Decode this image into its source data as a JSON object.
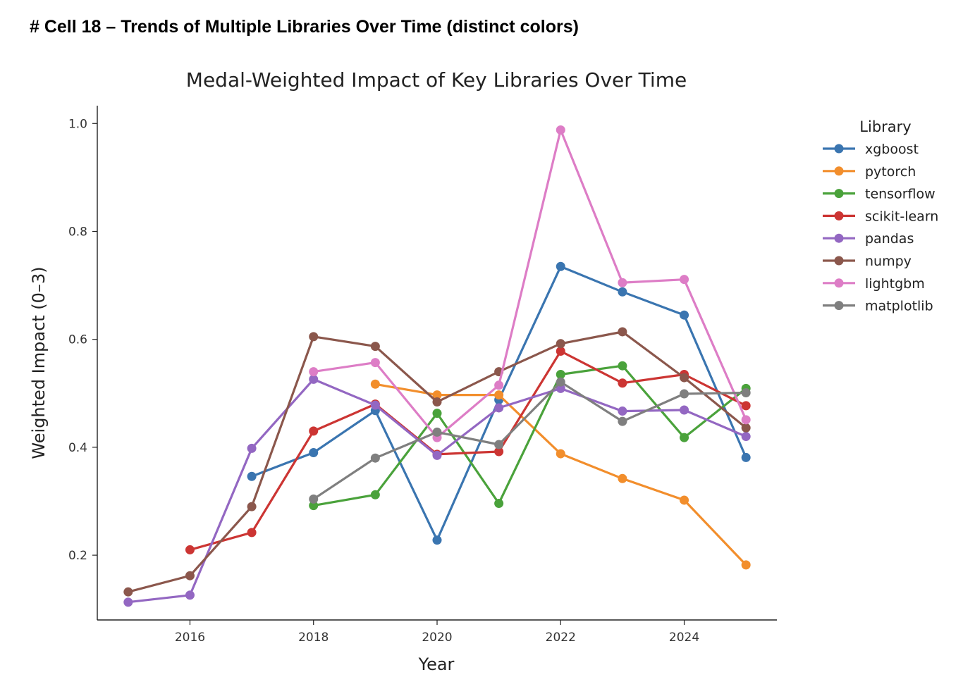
{
  "heading": "# Cell 18 – Trends of Multiple Libraries Over Time (distinct colors)",
  "chart_data": {
    "type": "line",
    "title": "Medal-Weighted Impact of Key Libraries Over Time",
    "xlabel": "Year",
    "ylabel": "Weighted Impact (0–3)",
    "xlim": [
      2014.5,
      2025.5
    ],
    "ylim": [
      0.08,
      1.033
    ],
    "x_ticks": [
      2016,
      2018,
      2020,
      2022,
      2024
    ],
    "y_ticks": [
      0.2,
      0.4,
      0.6,
      0.8,
      1.0
    ],
    "x_tick_labels": [
      "2016",
      "2018",
      "2020",
      "2022",
      "2024"
    ],
    "y_tick_labels": [
      "0.2",
      "0.4",
      "0.6",
      "0.8",
      "1.0"
    ],
    "grid": false,
    "legend": {
      "title": "Library",
      "placement": "outside-right"
    },
    "series": [
      {
        "name": "xgboost",
        "color": "#3a75b0",
        "points": [
          [
            2017,
            0.346
          ],
          [
            2018,
            0.39
          ],
          [
            2019,
            0.468
          ],
          [
            2020,
            0.228
          ],
          [
            2021,
            0.488
          ],
          [
            2022,
            0.735
          ],
          [
            2023,
            0.688
          ],
          [
            2024,
            0.645
          ],
          [
            2025,
            0.381
          ]
        ]
      },
      {
        "name": "pytorch",
        "color": "#f28e2c",
        "points": [
          [
            2019,
            0.517
          ],
          [
            2020,
            0.497
          ],
          [
            2021,
            0.497
          ],
          [
            2022,
            0.388
          ],
          [
            2023,
            0.342
          ],
          [
            2024,
            0.302
          ],
          [
            2025,
            0.182
          ]
        ]
      },
      {
        "name": "tensorflow",
        "color": "#4aa23b",
        "points": [
          [
            2018,
            0.292
          ],
          [
            2019,
            0.312
          ],
          [
            2020,
            0.463
          ],
          [
            2021,
            0.296
          ],
          [
            2022,
            0.535
          ],
          [
            2023,
            0.551
          ],
          [
            2024,
            0.418
          ],
          [
            2025,
            0.509
          ]
        ]
      },
      {
        "name": "scikit-learn",
        "color": "#cc3533",
        "points": [
          [
            2016,
            0.21
          ],
          [
            2017,
            0.242
          ],
          [
            2018,
            0.43
          ],
          [
            2019,
            0.48
          ],
          [
            2020,
            0.387
          ],
          [
            2021,
            0.392
          ],
          [
            2022,
            0.578
          ],
          [
            2023,
            0.519
          ],
          [
            2024,
            0.535
          ],
          [
            2025,
            0.477
          ]
        ]
      },
      {
        "name": "pandas",
        "color": "#9367c2",
        "points": [
          [
            2015,
            0.113
          ],
          [
            2016,
            0.126
          ],
          [
            2017,
            0.398
          ],
          [
            2018,
            0.526
          ],
          [
            2019,
            0.478
          ],
          [
            2020,
            0.385
          ],
          [
            2021,
            0.473
          ],
          [
            2022,
            0.509
          ],
          [
            2023,
            0.467
          ],
          [
            2024,
            0.469
          ],
          [
            2025,
            0.42
          ]
        ]
      },
      {
        "name": "numpy",
        "color": "#8b574c",
        "points": [
          [
            2015,
            0.132
          ],
          [
            2016,
            0.162
          ],
          [
            2017,
            0.29
          ],
          [
            2018,
            0.605
          ],
          [
            2019,
            0.587
          ],
          [
            2020,
            0.484
          ],
          [
            2021,
            0.54
          ],
          [
            2022,
            0.592
          ],
          [
            2023,
            0.614
          ],
          [
            2024,
            0.529
          ],
          [
            2025,
            0.436
          ]
        ]
      },
      {
        "name": "lightgbm",
        "color": "#dd7dc6",
        "points": [
          [
            2018,
            0.54
          ],
          [
            2019,
            0.557
          ],
          [
            2020,
            0.418
          ],
          [
            2021,
            0.515
          ],
          [
            2022,
            0.988
          ],
          [
            2023,
            0.705
          ],
          [
            2024,
            0.711
          ],
          [
            2025,
            0.451
          ]
        ]
      },
      {
        "name": "matplotlib",
        "color": "#7f7f7f",
        "points": [
          [
            2018,
            0.304
          ],
          [
            2019,
            0.38
          ],
          [
            2020,
            0.428
          ],
          [
            2021,
            0.405
          ],
          [
            2022,
            0.521
          ],
          [
            2023,
            0.448
          ],
          [
            2024,
            0.499
          ],
          [
            2025,
            0.501
          ]
        ]
      }
    ]
  }
}
